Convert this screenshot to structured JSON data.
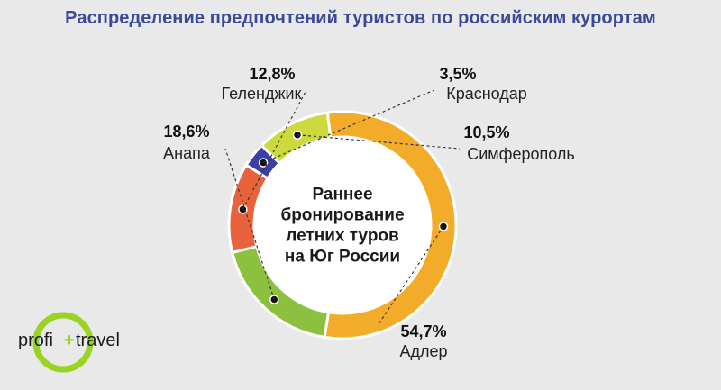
{
  "title": "Распределение предпочтений туристов по российским курортам",
  "chart_data": {
    "type": "pie",
    "title": "Распределение предпочтений туристов по российским курортам",
    "center_label": [
      "Раннее",
      "бронирование",
      "летних туров",
      "на Юг России"
    ],
    "slices": [
      {
        "name": "Геленджик",
        "value": 12.8,
        "label": "12,8%",
        "color": "#e8623c"
      },
      {
        "name": "Краснодар",
        "value": 3.5,
        "label": "3,5%",
        "color": "#3a3fa5"
      },
      {
        "name": "Симферополь",
        "value": 10.5,
        "label": "10,5%",
        "color": "#cdd93c"
      },
      {
        "name": "Адлер",
        "value": 54.7,
        "label": "54,7%",
        "color": "#f3ac2a"
      },
      {
        "name": "Анапа",
        "value": 18.6,
        "label": "18,6%",
        "color": "#8cc13f"
      }
    ]
  },
  "logo": {
    "left": "profi",
    "plus": "+",
    "right": "travel",
    "ring_color": "#9bd323"
  }
}
